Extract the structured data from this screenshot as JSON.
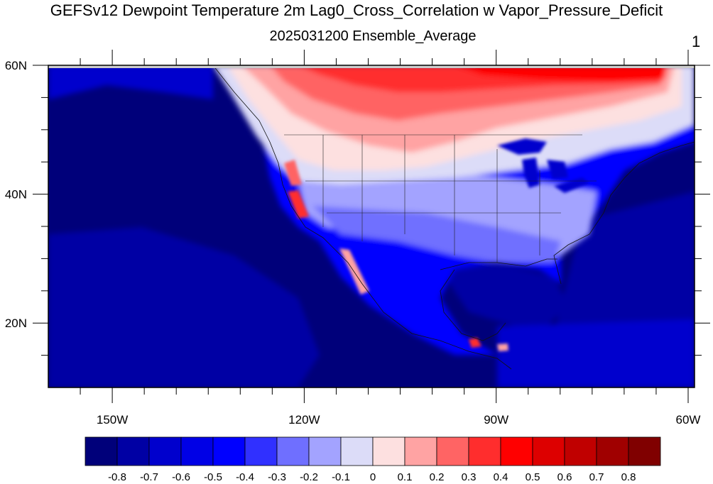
{
  "title": "GEFSv12 Dewpoint Temperature 2m Lag0_Cross_Correlation w Vapor_Pressure_Deficit",
  "subtitle": "2025031200 Ensemble_Average",
  "corner_label": "1",
  "map": {
    "projection": "cylindrical-equidistant",
    "lon_range": [
      -160,
      -59
    ],
    "lat_range": [
      10,
      60
    ],
    "lon_ticks": [
      {
        "label": "150W",
        "value": -150
      },
      {
        "label": "120W",
        "value": -120
      },
      {
        "label": "90W",
        "value": -90
      },
      {
        "label": "60W",
        "value": -60
      }
    ],
    "lat_ticks": [
      {
        "label": "60N",
        "value": 60
      },
      {
        "label": "40N",
        "value": 40
      },
      {
        "label": "20N",
        "value": 20
      }
    ]
  },
  "colorbar": {
    "colors": [
      "#00007a",
      "#0000a4",
      "#0000cd",
      "#0000e6",
      "#0000ff",
      "#3030ff",
      "#6f6fff",
      "#a3a3ff",
      "#dcdcf8",
      "#fde0e0",
      "#ffa3a3",
      "#ff6464",
      "#ff2d2d",
      "#ff0000",
      "#dd0000",
      "#c00000",
      "#a00000",
      "#800000"
    ],
    "labels": [
      "-0.8",
      "-0.7",
      "-0.6",
      "-0.5",
      "-0.4",
      "-0.3",
      "-0.2",
      "-0.1",
      "0",
      "0.1",
      "0.2",
      "0.3",
      "0.4",
      "0.5",
      "0.6",
      "0.7",
      "0.8"
    ]
  }
}
